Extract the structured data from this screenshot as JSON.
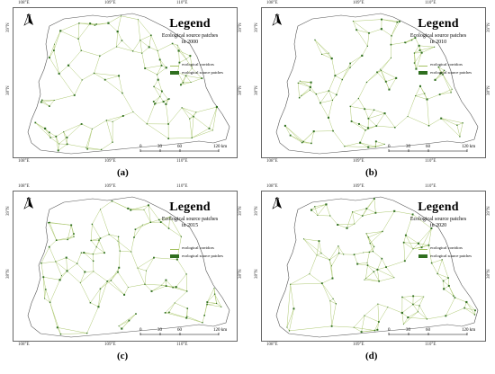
{
  "colors": {
    "corridor": "#a4c261",
    "patch": "#2f6f1f",
    "boundary": "#555555",
    "frame": "#666666"
  },
  "icons": [
    "north-arrow-icon"
  ],
  "common": {
    "legend_title": "Legend",
    "north_label": "N",
    "legend_corridors": "ecological corridors",
    "legend_patches": "ecological source patches",
    "lon_ticks": [
      "108°E",
      "109°E",
      "110°E"
    ],
    "lat_ticks": [
      "39°N",
      "38°N"
    ],
    "scale_labels": [
      "0",
      "30",
      "60",
      "120 km"
    ]
  },
  "panels": [
    {
      "caption": "(a)",
      "legend_sub1": "Ecological source patches",
      "legend_sub2": "in 2000"
    },
    {
      "caption": "(b)",
      "legend_sub1": "Ecological source patches",
      "legend_sub2": "in 2010"
    },
    {
      "caption": "(c)",
      "legend_sub1": "Ecological source patches",
      "legend_sub2": "in 2015"
    },
    {
      "caption": "(d)",
      "legend_sub1": "Ecological source patches",
      "legend_sub2": "in 2020"
    }
  ]
}
